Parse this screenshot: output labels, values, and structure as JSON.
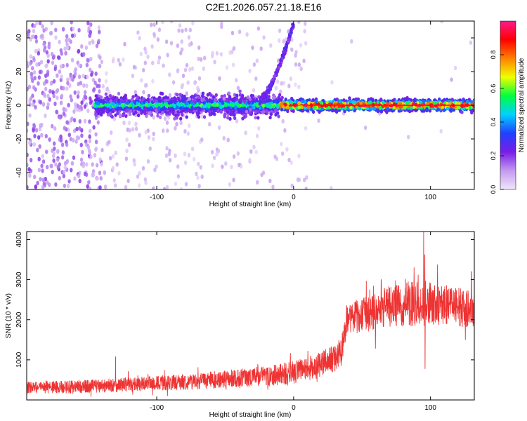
{
  "figure": {
    "title": "C2E1.2026.057.21.18.E16"
  },
  "chart_data": [
    {
      "type": "heatmap",
      "title": "C2E1.2026.057.21.18.E16",
      "xlabel": "Height of straight line (km)",
      "ylabel": "Frequency (Hz)",
      "xlim": [
        -195,
        132
      ],
      "ylim": [
        -50,
        50
      ],
      "x_ticks": [
        -100,
        0,
        100
      ],
      "x_tick_labels": [
        "-100",
        "0",
        "100"
      ],
      "y_ticks": [
        -40,
        -20,
        0,
        20,
        40
      ],
      "y_tick_labels": [
        "-40",
        "-20",
        "0",
        "20",
        "40"
      ],
      "colorbar": {
        "label": "Normalized spectral amplitude",
        "range": [
          0,
          1
        ],
        "ticks": [
          0.0,
          0.2,
          0.4,
          0.6,
          0.8
        ],
        "tick_labels": [
          "0.0",
          "0.2",
          "0.4",
          "0.6",
          "0.8"
        ],
        "colors": [
          "#f0e6fa",
          "#c39bf0",
          "#7a1de8",
          "#2040ff",
          "#00d0ff",
          "#00ff40",
          "#f0ff00",
          "#ff8000",
          "#ff0000",
          "#ff1a8c"
        ]
      },
      "features": {
        "main_band_center_hz": 0,
        "main_band_halfwidth_hz": 3,
        "band_start_km": -145,
        "noise_region_end_km": -140,
        "chirp_start_km": -25,
        "chirp_end_km": 0,
        "chirp_end_freq_hz": 48
      },
      "grid": false
    },
    {
      "type": "line",
      "xlabel": "Height of straight line (km)",
      "ylabel": "SNR (10 * v/v)",
      "xlim": [
        -195,
        132
      ],
      "ylim": [
        0,
        4200
      ],
      "x_ticks": [
        -100,
        0,
        100
      ],
      "x_tick_labels": [
        "-100",
        "0",
        "100"
      ],
      "y_ticks": [
        1000,
        2000,
        3000,
        4000
      ],
      "y_tick_labels": [
        "1000",
        "2000",
        "3000",
        "4000"
      ],
      "series": [
        {
          "name": "SNR",
          "color": "#ee3333",
          "x": [
            -195,
            -170,
            -150,
            -130,
            -110,
            -90,
            -70,
            -50,
            -30,
            -10,
            0,
            10,
            20,
            30,
            35,
            38,
            45,
            55,
            65,
            75,
            85,
            95,
            105,
            115,
            125,
            132
          ],
          "y": [
            310,
            320,
            340,
            370,
            400,
            430,
            470,
            520,
            580,
            640,
            690,
            760,
            880,
            1050,
            1200,
            1900,
            2050,
            2180,
            2300,
            2350,
            2400,
            2420,
            2380,
            2330,
            2300,
            2280
          ],
          "noise_amplitude": [
            160,
            170,
            180,
            190,
            200,
            210,
            220,
            240,
            260,
            300,
            320,
            340,
            360,
            380,
            400,
            450,
            480,
            520,
            550,
            580,
            620,
            650,
            600,
            560,
            540,
            520
          ],
          "spikes": [
            {
              "x": 95,
              "y": 4200
            },
            {
              "x": 88,
              "y": 3300
            },
            {
              "x": 96,
              "y": 780
            },
            {
              "x": 64,
              "y": 3000
            },
            {
              "x": -130,
              "y": 1080
            },
            {
              "x": 130,
              "y": 3200
            }
          ]
        }
      ],
      "grid": false
    }
  ]
}
